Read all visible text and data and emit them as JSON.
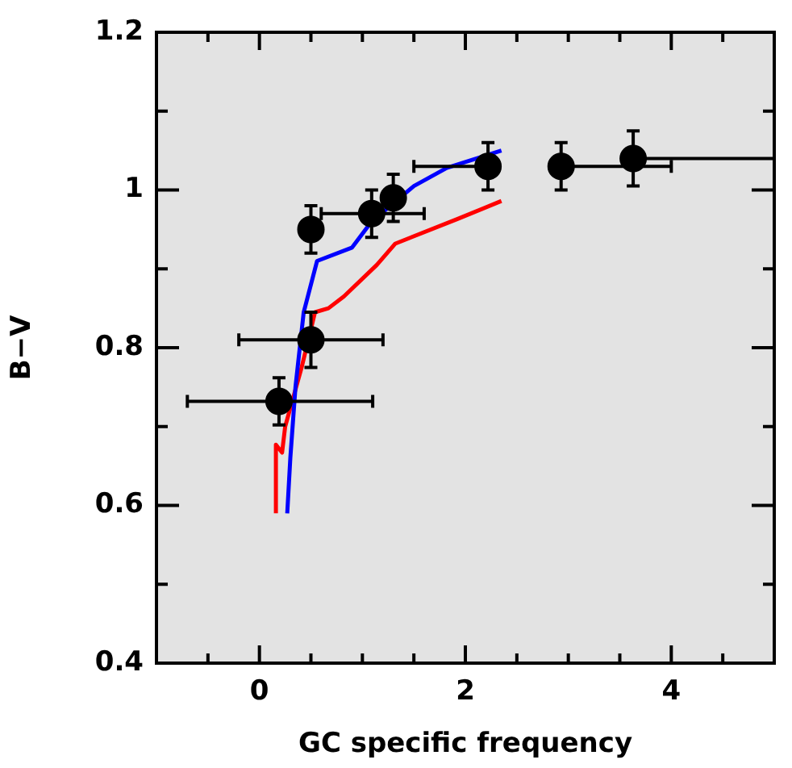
{
  "chart_data": {
    "type": "scatter",
    "xlabel": "GC specific frequency",
    "ylabel": "B−V",
    "xlim": [
      -1,
      5
    ],
    "ylim": [
      0.4,
      1.2
    ],
    "xticks": [
      {
        "value": -0.5,
        "label": null
      },
      0,
      {
        "value": 0.5,
        "label": null
      },
      {
        "value": 1,
        "label": null
      },
      {
        "value": 1.5,
        "label": null
      },
      2,
      {
        "value": 2.5,
        "label": null
      },
      {
        "value": 3,
        "label": null
      },
      {
        "value": 3.5,
        "label": null
      },
      4,
      {
        "value": 4.5,
        "label": null
      }
    ],
    "yticks": [
      0.4,
      {
        "value": 0.5,
        "label": null
      },
      0.6,
      {
        "value": 0.7,
        "label": null
      },
      0.8,
      {
        "value": 0.9,
        "label": null
      },
      1,
      {
        "value": 1.1,
        "label": null
      },
      1.2
    ],
    "legend": false,
    "grid": false,
    "series": [
      {
        "type": "scatter",
        "color": "#000000",
        "marker": "circle",
        "x": [
          0.19,
          0.5,
          0.5,
          1.09,
          1.3,
          2.22,
          2.93,
          3.63
        ],
        "values": [
          0.732,
          0.95,
          0.81,
          0.97,
          0.99,
          1.03,
          1.03,
          1.04
        ],
        "errors": [
          0.03,
          0.03,
          0.035,
          0.03,
          0.03,
          0.03,
          0.03,
          0.035
        ],
        "xerrors": [
          [
            -0.7,
            1.1
          ],
          null,
          [
            -0.2,
            1.2
          ],
          [
            0.6,
            1.6
          ],
          null,
          [
            1.5,
            2.22
          ],
          [
            2.93,
            4.0
          ],
          [
            3.63,
            5
          ]
        ]
      },
      {
        "type": "line",
        "color": "#0000ff",
        "x": [
          0.27,
          0.3,
          0.35,
          0.43,
          0.56,
          0.9,
          1.09,
          1.5,
          1.82,
          2.35
        ],
        "values": [
          0.59,
          0.66,
          0.75,
          0.845,
          0.91,
          0.927,
          0.96,
          1.005,
          1.028,
          1.05
        ]
      },
      {
        "type": "line",
        "color": "#ff0000",
        "x": [
          0.16,
          0.16,
          0.22,
          0.25,
          0.41,
          0.54,
          0.67,
          0.82,
          1.14,
          1.32,
          1.92,
          2.35
        ],
        "values": [
          0.59,
          0.677,
          0.667,
          0.7,
          0.775,
          0.845,
          0.85,
          0.865,
          0.905,
          0.932,
          0.963,
          0.986
        ]
      }
    ]
  }
}
